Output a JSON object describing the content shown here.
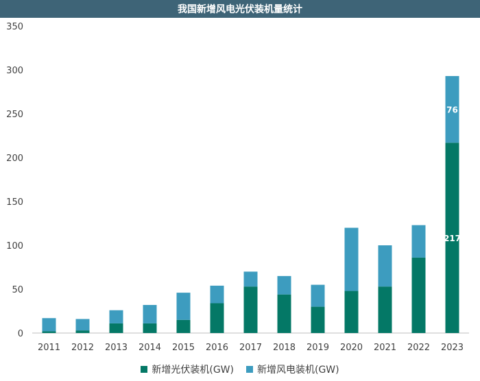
{
  "chart_data": {
    "type": "bar",
    "stacked": true,
    "title": "我国新增风电光伏装机量统计",
    "categories": [
      "2011",
      "2012",
      "2013",
      "2014",
      "2015",
      "2016",
      "2017",
      "2018",
      "2019",
      "2020",
      "2021",
      "2022",
      "2023"
    ],
    "series": [
      {
        "name": "新增光伏装机(GW)",
        "color": "#047866",
        "values": [
          2,
          3,
          11,
          11,
          15,
          34,
          53,
          44,
          30,
          48,
          53,
          86,
          217
        ]
      },
      {
        "name": "新增风电装机(GW)",
        "color": "#3d9cbf",
        "values": [
          15,
          13,
          15,
          21,
          31,
          20,
          17,
          21,
          25,
          72,
          47,
          37,
          76
        ]
      }
    ],
    "data_labels": [
      {
        "category": "2023",
        "series": 0,
        "text": "217"
      },
      {
        "category": "2023",
        "series": 1,
        "text": "76"
      }
    ],
    "ylim": [
      0,
      350
    ],
    "yticks": [
      "0",
      "50",
      "100",
      "150",
      "200",
      "250",
      "300",
      "350"
    ],
    "grid": false,
    "legend_position": "bottom"
  }
}
